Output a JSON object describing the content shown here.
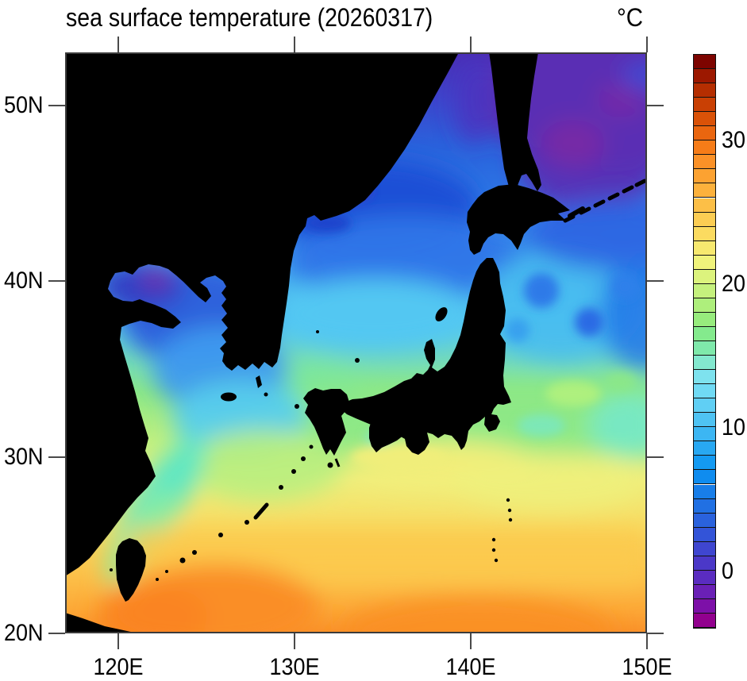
{
  "chart_data": {
    "type": "heatmap",
    "title": "sea surface temperature (20260317)",
    "variable": "sea surface temperature",
    "date": "20260317",
    "units": "°C",
    "projection": "cylindrical equidistant lat-lon map of the Northwest Pacific / Japan region",
    "x_ticks": [
      {
        "label": "120E",
        "lon": 120
      },
      {
        "label": "130E",
        "lon": 130
      },
      {
        "label": "140E",
        "lon": 140
      },
      {
        "label": "150E",
        "lon": 150
      }
    ],
    "y_ticks": [
      {
        "label": "20N",
        "lat": 20
      },
      {
        "label": "30N",
        "lat": 30
      },
      {
        "label": "40N",
        "lat": 40
      },
      {
        "label": "50N",
        "lat": 50
      }
    ],
    "lon_range_deg_e": [
      117,
      150
    ],
    "lat_range_deg_n": [
      20,
      53
    ],
    "grid": false,
    "land_color": "#000000",
    "frame_color": "#3b3b3b",
    "colorbar": {
      "position": "right",
      "min_c": -4,
      "max_c": 36,
      "step_c": 1,
      "n_boxes": 40,
      "tick_values": [
        0,
        10,
        20,
        30
      ],
      "tick_labels": [
        "0",
        "10",
        "20",
        "30"
      ],
      "colors_bottom_to_top": [
        "#92008e",
        "#7d10a8",
        "#6a20b6",
        "#5a2cc0",
        "#4b38c8",
        "#3f46d0",
        "#3354d8",
        "#2a62dd",
        "#2170e3",
        "#187ee9",
        "#0f8cef",
        "#149af2",
        "#28a8f2",
        "#3cb6f3",
        "#4fc3f3",
        "#60cff4",
        "#70daf4",
        "#7ee2ee",
        "#83e8cf",
        "#7fe9ab",
        "#84ea8d",
        "#97ec7d",
        "#aeef7c",
        "#c5f17d",
        "#dcf37d",
        "#f0f37b",
        "#f7e96f",
        "#fbdb60",
        "#fccd53",
        "#fcbf47",
        "#fcb13c",
        "#fca231",
        "#fb9127",
        "#f67c18",
        "#ea660f",
        "#da5208",
        "#c94004",
        "#b52e01",
        "#9c1800",
        "#7d0400"
      ]
    },
    "land_masses_shown": [
      "Asian mainland (China / Korea / Russian Far East)",
      "Korean Peninsula",
      "Japan: Kyushu, Shikoku, Honshu, Hokkaido",
      "Sakhalin",
      "Kuril Islands",
      "Taiwan",
      "Ryukyu Island chain",
      "Jeju, Tsushima, Sado, Oki, Izu-Ogasawara islands"
    ],
    "approx_regional_sst_c": [
      {
        "region": "Sea of Okhotsk (top right)",
        "sst": -1
      },
      {
        "region": "Tatar Strait / N Sea of Japan",
        "sst": 3
      },
      {
        "region": "Central Sea of Japan",
        "sst": 7
      },
      {
        "region": "S Sea of Japan / Tsushima Strait",
        "sst": 12
      },
      {
        "region": "Bohai Sea",
        "sst": 0
      },
      {
        "region": "Northern Yellow Sea",
        "sst": 4
      },
      {
        "region": "Southern Yellow Sea",
        "sst": 10
      },
      {
        "region": "East China Sea shelf",
        "sst": 16
      },
      {
        "region": "Oyashio region east of Tohoku",
        "sst": 8
      },
      {
        "region": "Kuroshio south of Honshu",
        "sst": 20
      },
      {
        "region": "Subtropics near 27N",
        "sst": 23
      },
      {
        "region": "Southern edge near 21N",
        "sst": 26
      }
    ],
    "notes": "Sharp subarctic SST front near 37N east of Japan with mesoscale eddies; coldest purple water in Sea of Okhotsk; warmest orange water along southern boundary."
  }
}
